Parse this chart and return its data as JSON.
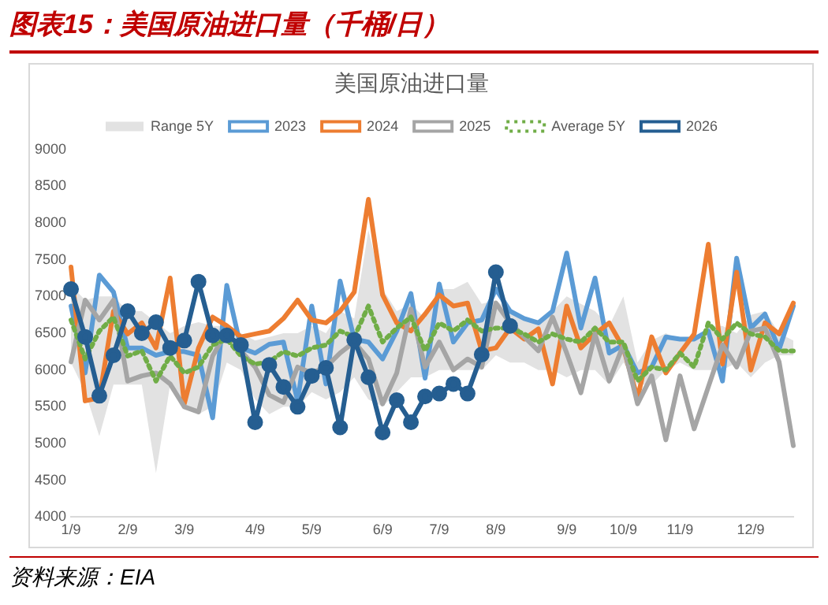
{
  "chart_data": {
    "type": "line",
    "title": "图表15：美国原油进口量（千桶/日）",
    "subtitle": "美国原油进口量",
    "annotations": [
      "资料来源：EIA"
    ],
    "categories": [
      "1/9",
      null,
      null,
      null,
      "2/9",
      null,
      null,
      null,
      "3/9",
      null,
      null,
      null,
      null,
      "4/9",
      null,
      null,
      null,
      "5/9",
      null,
      null,
      null,
      null,
      "6/9",
      null,
      null,
      null,
      "7/9",
      null,
      null,
      null,
      "8/9",
      null,
      null,
      null,
      null,
      "9/9",
      null,
      null,
      null,
      "10/9",
      null,
      null,
      null,
      "11/9",
      null,
      null,
      null,
      null,
      "12/9",
      null,
      null,
      null
    ],
    "ylim": [
      4000,
      9000
    ],
    "yticks": [
      4000,
      4500,
      5000,
      5500,
      6000,
      6500,
      7000,
      7500,
      8000,
      8500,
      9000
    ],
    "legend": "top",
    "series": [
      {
        "name": "Range 5Y",
        "type": "line",
        "color": "#e2e2e2",
        "values": [
          null,
          null,
          null,
          null,
          null,
          null,
          null,
          null,
          null,
          null,
          null,
          null,
          null,
          null,
          null,
          null,
          null,
          null,
          null,
          null,
          null,
          null,
          null,
          null,
          null,
          null,
          null,
          null,
          null,
          null,
          null,
          null,
          null,
          null,
          null,
          null,
          null,
          null,
          null,
          null,
          null,
          null,
          null,
          null,
          null,
          null,
          null,
          null,
          null,
          null,
          null,
          null
        ],
        "lower": [
          6100,
          5700,
          5100,
          5800,
          5800,
          5800,
          4600,
          5800,
          5500,
          5400,
          5500,
          6100,
          6000,
          5600,
          5400,
          5500,
          5500,
          5700,
          5600,
          5700,
          5900,
          5600,
          5500,
          5700,
          5900,
          5900,
          6000,
          6000,
          6000,
          6000,
          6200,
          6100,
          6100,
          6000,
          6000,
          5900,
          6000,
          6000,
          5800,
          6100,
          5800,
          5800,
          6000,
          6100,
          6000,
          6000,
          6000,
          6100,
          5900,
          6100,
          6200,
          6200
        ],
        "upper": [
          7150,
          6950,
          7000,
          7000,
          6800,
          6800,
          6650,
          6500,
          6600,
          6650,
          6600,
          6600,
          6500,
          6400,
          6450,
          6500,
          6500,
          6600,
          6500,
          6800,
          6700,
          7900,
          7100,
          6800,
          6900,
          6700,
          7100,
          7100,
          7200,
          6900,
          6950,
          6800,
          6700,
          6600,
          6800,
          7000,
          6900,
          6800,
          6600,
          7000,
          6100,
          6400,
          6500,
          6400,
          6400,
          6600,
          6600,
          6500,
          6750,
          6800,
          6500,
          6400
        ]
      },
      {
        "name": "2023",
        "color": "#5b9bd5",
        "values": [
          6870,
          5960,
          7290,
          7060,
          6300,
          6300,
          6200,
          6250,
          6250,
          6200,
          5350,
          7150,
          6300,
          6230,
          6350,
          6380,
          5580,
          6870,
          5810,
          7210,
          6420,
          6380,
          6150,
          6530,
          7040,
          5890,
          7170,
          6380,
          6640,
          6680,
          7100,
          6800,
          6700,
          6640,
          6800,
          7590,
          6570,
          7250,
          6230,
          6340,
          5960,
          6040,
          6450,
          6420,
          6420,
          6530,
          5850,
          7520,
          6570,
          6760,
          6280,
          6870
        ]
      },
      {
        "name": "2024",
        "color": "#ed7d31",
        "values": [
          7400,
          5580,
          5620,
          6800,
          6490,
          6640,
          6300,
          7250,
          5540,
          6300,
          6720,
          6600,
          6450,
          6490,
          6530,
          6700,
          6950,
          6680,
          6640,
          6800,
          7060,
          8320,
          7020,
          6640,
          6530,
          6760,
          7020,
          6870,
          6910,
          6260,
          6300,
          6570,
          6420,
          6560,
          5810,
          6870,
          6300,
          6490,
          6640,
          6300,
          5620,
          6450,
          5960,
          6230,
          6490,
          7710,
          6080,
          7330,
          6000,
          6640,
          6490,
          6910
        ]
      },
      {
        "name": "2025",
        "color": "#a5a5a5",
        "values": [
          6110,
          6950,
          6680,
          6950,
          5850,
          5920,
          5960,
          5810,
          5500,
          5430,
          6190,
          6530,
          6260,
          6040,
          5660,
          5560,
          6040,
          5960,
          6040,
          6230,
          6380,
          6150,
          5540,
          5960,
          6830,
          6040,
          6380,
          6000,
          6150,
          6040,
          6910,
          6640,
          6450,
          6260,
          6720,
          6230,
          5690,
          6490,
          5850,
          6340,
          5540,
          5920,
          5050,
          5920,
          5200,
          5770,
          6340,
          6040,
          6530,
          6570,
          6110,
          4970
        ]
      },
      {
        "name": "Average 5Y",
        "color": "#70ad47",
        "line_style": "dotted",
        "values": [
          6680,
          6150,
          6530,
          6720,
          6190,
          6260,
          5850,
          6190,
          5960,
          6040,
          6340,
          6420,
          6190,
          6080,
          6110,
          6250,
          6190,
          6300,
          6340,
          6530,
          6450,
          6870,
          6380,
          6570,
          6720,
          6260,
          6640,
          6530,
          6680,
          6530,
          6570,
          6570,
          6490,
          6380,
          6490,
          6420,
          6380,
          6570,
          6380,
          6380,
          5850,
          6040,
          6000,
          6230,
          6040,
          6640,
          6420,
          6640,
          6490,
          6450,
          6260,
          6260
        ]
      },
      {
        "name": "2026",
        "color": "#255e91",
        "marker": "circle",
        "values": [
          7100,
          6450,
          5650,
          6200,
          6800,
          6500,
          6650,
          6300,
          6400,
          7200,
          6470,
          6470,
          6340,
          5290,
          6070,
          5770,
          5500,
          5920,
          6030,
          5220,
          6410,
          5900,
          5150,
          5590,
          5290,
          5640,
          5680,
          5810,
          5680,
          6210,
          7330,
          6600,
          null,
          null,
          null,
          null,
          null,
          null,
          null,
          null,
          null,
          null,
          null,
          null,
          null,
          null,
          null,
          null,
          null,
          null,
          null,
          null
        ]
      }
    ]
  }
}
